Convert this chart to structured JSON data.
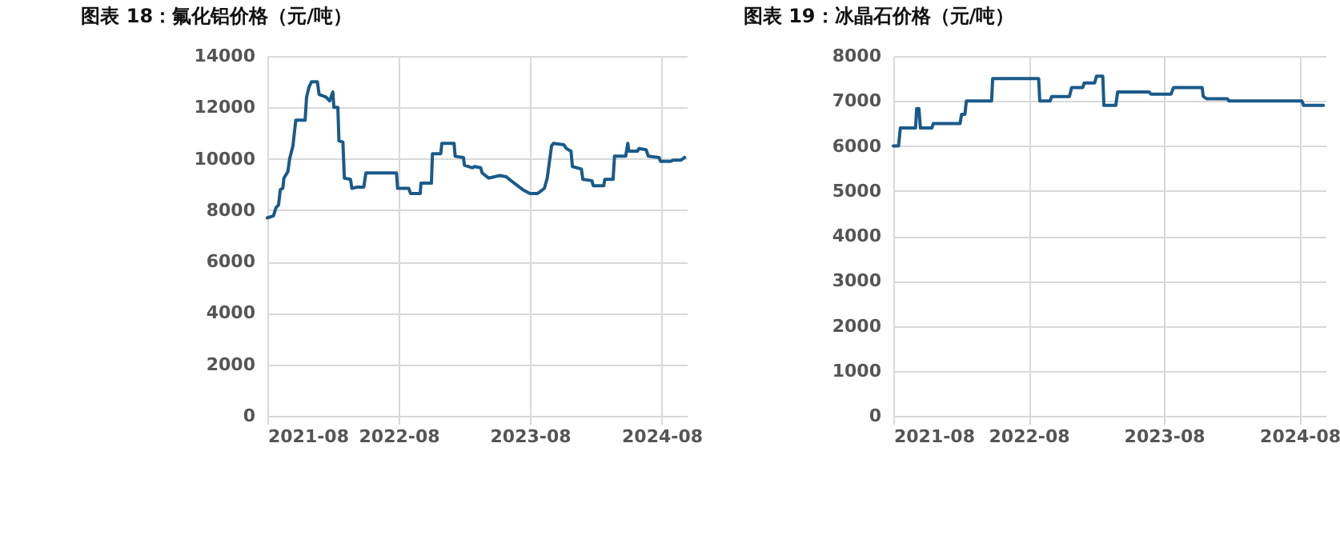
{
  "chart_data": [
    {
      "type": "line",
      "title": "图表 18：氟化铝价格（元/吨）",
      "grid": true,
      "xlim": [
        "2021-08",
        "2024-10-10"
      ],
      "xticks": [
        "2021-08",
        "2022-08",
        "2023-08",
        "2024-08"
      ],
      "ylim": [
        0,
        14000
      ],
      "yticks": [
        0,
        2000,
        4000,
        6000,
        8000,
        10000,
        12000,
        14000
      ],
      "series": [
        {
          "color": "#1a5a8a",
          "x": [
            "2021-08-01",
            "2021-08-18",
            "2021-08-25",
            "2021-09-01",
            "2021-09-06",
            "2021-09-13",
            "2021-09-16",
            "2021-09-27",
            "2021-10-02",
            "2021-10-11",
            "2021-10-19",
            "2021-11-14",
            "2021-11-18",
            "2021-11-25",
            "2021-12-02",
            "2021-12-18",
            "2021-12-23",
            "2022-01-11",
            "2022-01-21",
            "2022-01-30",
            "2022-02-02",
            "2022-02-13",
            "2022-02-16",
            "2022-02-27",
            "2022-03-03",
            "2022-03-20",
            "2022-03-24",
            "2022-04-08",
            "2022-04-26",
            "2022-05-02",
            "2022-07-26",
            "2022-07-29",
            "2022-08-29",
            "2022-09-03",
            "2022-09-30",
            "2022-10-02",
            "2022-10-31",
            "2022-11-03",
            "2022-11-26",
            "2022-11-29",
            "2023-01-02",
            "2023-01-05",
            "2023-01-28",
            "2023-01-31",
            "2023-02-22",
            "2023-02-28",
            "2023-03-17",
            "2023-03-21",
            "2023-04-08",
            "2023-05-09",
            "2023-05-27",
            "2023-06-23",
            "2023-07-12",
            "2023-08-01",
            "2023-08-21",
            "2023-08-27",
            "2023-09-10",
            "2023-09-18",
            "2023-09-30",
            "2023-10-05",
            "2023-11-03",
            "2023-11-10",
            "2023-11-23",
            "2023-11-27",
            "2023-12-22",
            "2023-12-26",
            "2024-01-20",
            "2024-01-24",
            "2024-02-22",
            "2024-02-25",
            "2024-03-19",
            "2024-03-23",
            "2024-04-23",
            "2024-04-29",
            "2024-05-02",
            "2024-05-26",
            "2024-05-30",
            "2024-06-19",
            "2024-06-25",
            "2024-07-25",
            "2024-07-29",
            "2024-08-26",
            "2024-09-03",
            "2024-09-24",
            "2024-10-04"
          ],
          "values": [
            7700,
            7780,
            8100,
            8200,
            8800,
            8850,
            9250,
            9500,
            10000,
            10500,
            11500,
            11500,
            12400,
            12800,
            13000,
            13000,
            12500,
            12400,
            12250,
            12600,
            12000,
            12000,
            10700,
            10650,
            9250,
            9200,
            8850,
            8900,
            8900,
            9450,
            9450,
            8850,
            8850,
            8650,
            8650,
            9050,
            9050,
            10200,
            10200,
            10600,
            10600,
            10100,
            10050,
            9750,
            9650,
            9700,
            9650,
            9450,
            9250,
            9350,
            9300,
            9000,
            8800,
            8650,
            8650,
            8700,
            8850,
            9250,
            10500,
            10600,
            10550,
            10400,
            10300,
            9700,
            9600,
            9200,
            9150,
            8950,
            8950,
            9200,
            9200,
            10100,
            10100,
            10600,
            10300,
            10300,
            10400,
            10350,
            10100,
            10050,
            9900,
            9900,
            9950,
            9950,
            10050
          ]
        }
      ]
    },
    {
      "type": "line",
      "title": "图表 19：冰晶石价格（元/吨）",
      "grid": true,
      "xlim": [
        "2021-08",
        "2024-10-10"
      ],
      "xticks": [
        "2021-08",
        "2022-08",
        "2023-08",
        "2024-08"
      ],
      "ylim": [
        0,
        8000
      ],
      "yticks": [
        0,
        1000,
        2000,
        3000,
        4000,
        5000,
        6000,
        7000,
        8000
      ],
      "series": [
        {
          "color": "#1a5a8a",
          "x": [
            "2021-08-01",
            "2021-08-15",
            "2021-08-20",
            "2021-09-30",
            "2021-10-03",
            "2021-10-09",
            "2021-10-13",
            "2021-11-13",
            "2021-11-17",
            "2022-01-28",
            "2022-02-01",
            "2022-02-10",
            "2022-02-14",
            "2022-04-23",
            "2022-04-26",
            "2022-08-28",
            "2022-08-31",
            "2022-09-28",
            "2022-10-02",
            "2022-11-19",
            "2022-11-25",
            "2022-12-25",
            "2022-12-29",
            "2023-01-26",
            "2023-01-31",
            "2023-02-17",
            "2023-02-20",
            "2023-03-24",
            "2023-03-29",
            "2023-06-22",
            "2023-06-27",
            "2023-08-20",
            "2023-08-27",
            "2023-11-12",
            "2023-11-15",
            "2023-11-24",
            "2024-01-19",
            "2024-01-23",
            "2024-08-07",
            "2024-08-12",
            "2024-10-04"
          ],
          "values": [
            6000,
            6000,
            6400,
            6400,
            6830,
            6830,
            6400,
            6400,
            6500,
            6500,
            6700,
            6700,
            7000,
            7000,
            7500,
            7500,
            7000,
            7000,
            7100,
            7100,
            7300,
            7300,
            7400,
            7400,
            7550,
            7550,
            6900,
            6900,
            7200,
            7200,
            7150,
            7150,
            7300,
            7300,
            7100,
            7050,
            7050,
            7000,
            7000,
            6900,
            6900
          ]
        }
      ]
    }
  ]
}
